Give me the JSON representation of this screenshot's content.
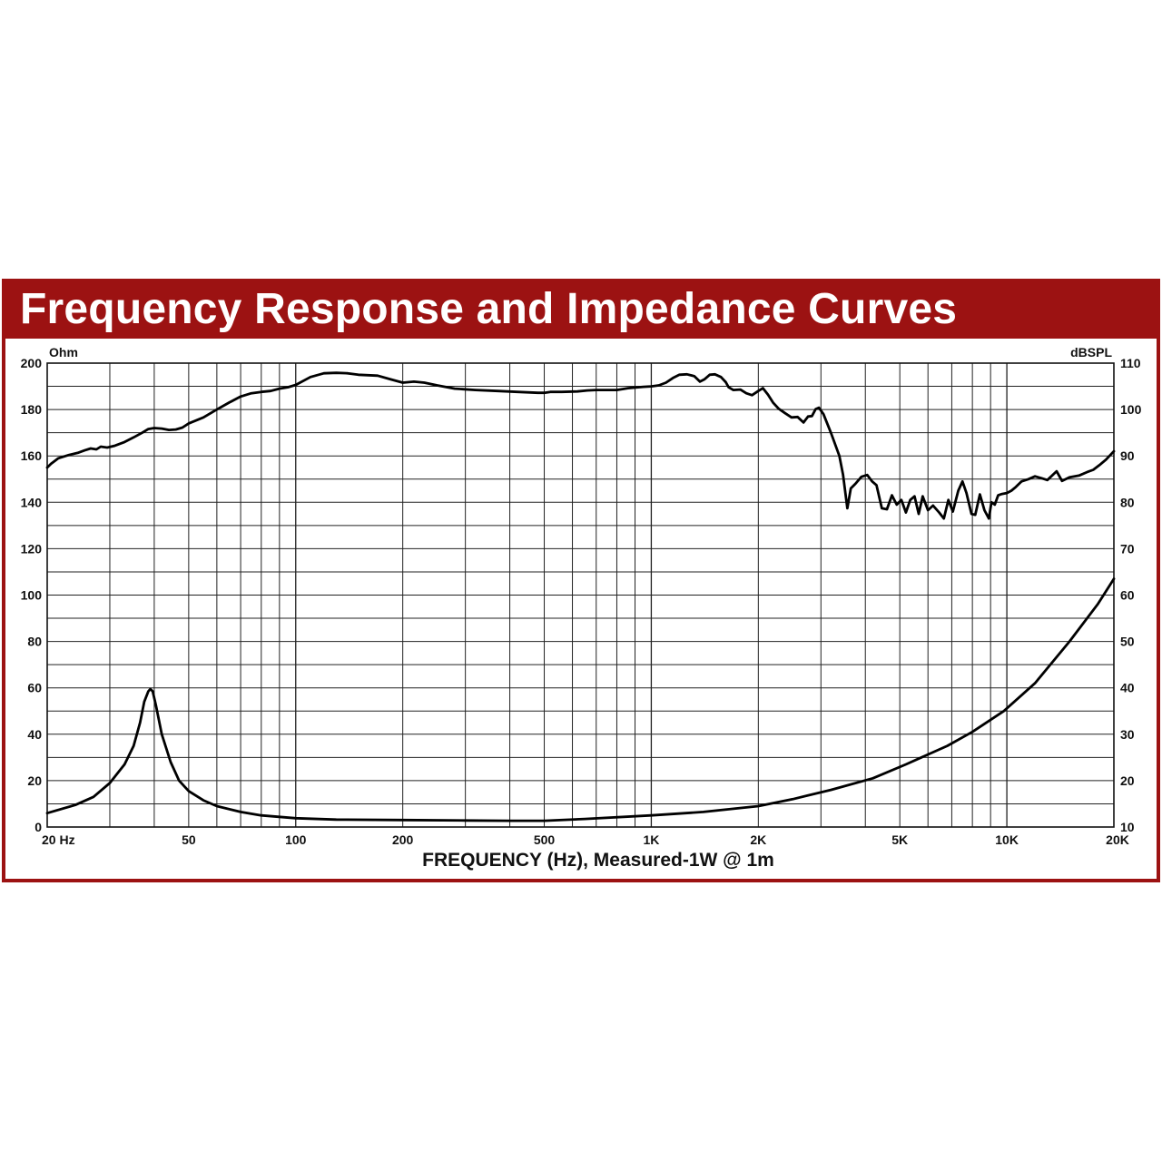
{
  "chart_data": {
    "type": "line",
    "title": "Frequency Response and Impedance Curves",
    "xlabel": "FREQUENCY (Hz), Measured-1W @ 1m",
    "x_scale": "log",
    "xlim": [
      20,
      20000
    ],
    "left_axis": {
      "unit_label": "Ohm",
      "lim": [
        0,
        200
      ],
      "ticks": [
        "0",
        "20",
        "40",
        "60",
        "80",
        "100",
        "120",
        "140",
        "160",
        "180",
        "200"
      ]
    },
    "right_axis": {
      "unit_label": "dBSPL",
      "lim": [
        10,
        110
      ],
      "ticks": [
        "10",
        "20",
        "30",
        "40",
        "50",
        "60",
        "70",
        "80",
        "90",
        "100",
        "110"
      ]
    },
    "x_tick_labels": [
      {
        "v": 20,
        "label": "20 Hz"
      },
      {
        "v": 50,
        "label": "50"
      },
      {
        "v": 100,
        "label": "100"
      },
      {
        "v": 200,
        "label": "200"
      },
      {
        "v": 500,
        "label": "500"
      },
      {
        "v": 1000,
        "label": "1K"
      },
      {
        "v": 2000,
        "label": "2K"
      },
      {
        "v": 5000,
        "label": "5K"
      },
      {
        "v": 10000,
        "label": "10K"
      },
      {
        "v": 20000,
        "label": "20K"
      }
    ],
    "grid": true,
    "series": [
      {
        "axis": "right",
        "units": "dBSPL",
        "points": [
          [
            20,
            87.5
          ],
          [
            20.5,
            88.3
          ],
          [
            21.5,
            89.5
          ],
          [
            23,
            90.2
          ],
          [
            24.5,
            90.7
          ],
          [
            25.5,
            91.2
          ],
          [
            26.5,
            91.6
          ],
          [
            27.5,
            91.4
          ],
          [
            28.3,
            92
          ],
          [
            29.5,
            91.8
          ],
          [
            31,
            92.2
          ],
          [
            33,
            93
          ],
          [
            35,
            94
          ],
          [
            37,
            95
          ],
          [
            38.5,
            95.8
          ],
          [
            40,
            96
          ],
          [
            42,
            95.9
          ],
          [
            44,
            95.6
          ],
          [
            46,
            95.7
          ],
          [
            48,
            96.1
          ],
          [
            50,
            97
          ],
          [
            55,
            98.3
          ],
          [
            60,
            100
          ],
          [
            65,
            101.5
          ],
          [
            70,
            102.8
          ],
          [
            75,
            103.5
          ],
          [
            80,
            103.8
          ],
          [
            85,
            104
          ],
          [
            90,
            104.5
          ],
          [
            95,
            104.8
          ],
          [
            100,
            105.3
          ],
          [
            110,
            107
          ],
          [
            120,
            107.8
          ],
          [
            130,
            107.9
          ],
          [
            140,
            107.8
          ],
          [
            150,
            107.5
          ],
          [
            170,
            107.3
          ],
          [
            185,
            106.5
          ],
          [
            200,
            105.8
          ],
          [
            215,
            106
          ],
          [
            230,
            105.8
          ],
          [
            250,
            105.2
          ],
          [
            280,
            104.5
          ],
          [
            320,
            104.2
          ],
          [
            370,
            104
          ],
          [
            420,
            103.8
          ],
          [
            480,
            103.6
          ],
          [
            500,
            103.6
          ],
          [
            520,
            103.8
          ],
          [
            560,
            103.8
          ],
          [
            620,
            103.9
          ],
          [
            660,
            104.1
          ],
          [
            700,
            104.2
          ],
          [
            770,
            104.2
          ],
          [
            800,
            104.2
          ],
          [
            860,
            104.6
          ],
          [
            950,
            104.9
          ],
          [
            1000,
            105
          ],
          [
            1050,
            105.2
          ],
          [
            1100,
            105.8
          ],
          [
            1150,
            106.8
          ],
          [
            1200,
            107.5
          ],
          [
            1260,
            107.6
          ],
          [
            1320,
            107.2
          ],
          [
            1370,
            106
          ],
          [
            1410,
            106.5
          ],
          [
            1460,
            107.5
          ],
          [
            1510,
            107.6
          ],
          [
            1570,
            107
          ],
          [
            1620,
            105.9
          ],
          [
            1650,
            104.8
          ],
          [
            1700,
            104.2
          ],
          [
            1780,
            104.3
          ],
          [
            1850,
            103.5
          ],
          [
            1920,
            103.1
          ],
          [
            2000,
            104
          ],
          [
            2060,
            104.6
          ],
          [
            2130,
            103.2
          ],
          [
            2200,
            101.5
          ],
          [
            2280,
            100.2
          ],
          [
            2380,
            99.2
          ],
          [
            2480,
            98.3
          ],
          [
            2580,
            98.4
          ],
          [
            2680,
            97.2
          ],
          [
            2760,
            98.5
          ],
          [
            2830,
            98.6
          ],
          [
            2900,
            100.1
          ],
          [
            2960,
            100.4
          ],
          [
            3050,
            99
          ],
          [
            3200,
            95
          ],
          [
            3380,
            90
          ],
          [
            3460,
            86
          ],
          [
            3560,
            78.7
          ],
          [
            3640,
            83
          ],
          [
            3750,
            84
          ],
          [
            3900,
            85.5
          ],
          [
            4050,
            85.9
          ],
          [
            4180,
            84.5
          ],
          [
            4300,
            83.7
          ],
          [
            4450,
            78.7
          ],
          [
            4600,
            78.5
          ],
          [
            4750,
            81.5
          ],
          [
            4900,
            79.5
          ],
          [
            5050,
            80.5
          ],
          [
            5200,
            77.8
          ],
          [
            5350,
            80.5
          ],
          [
            5500,
            81.3
          ],
          [
            5650,
            77.5
          ],
          [
            5800,
            81.3
          ],
          [
            6000,
            78.3
          ],
          [
            6200,
            79.3
          ],
          [
            6450,
            77.8
          ],
          [
            6650,
            76.5
          ],
          [
            6850,
            80.5
          ],
          [
            7050,
            78
          ],
          [
            7300,
            82.5
          ],
          [
            7500,
            84.5
          ],
          [
            7700,
            82
          ],
          [
            7950,
            77.5
          ],
          [
            8150,
            77.3
          ],
          [
            8400,
            81.7
          ],
          [
            8650,
            78.3
          ],
          [
            8900,
            76.5
          ],
          [
            9050,
            80
          ],
          [
            9250,
            79.5
          ],
          [
            9450,
            81.5
          ],
          [
            9700,
            81.8
          ],
          [
            10000,
            82
          ],
          [
            10300,
            82.5
          ],
          [
            10600,
            83.3
          ],
          [
            11000,
            84.5
          ],
          [
            11500,
            85
          ],
          [
            12000,
            85.6
          ],
          [
            12500,
            85.2
          ],
          [
            13000,
            84.8
          ],
          [
            13800,
            86.7
          ],
          [
            14300,
            84.6
          ],
          [
            15000,
            85.4
          ],
          [
            16000,
            85.8
          ],
          [
            16800,
            86.5
          ],
          [
            17500,
            87
          ],
          [
            18200,
            88
          ],
          [
            19000,
            89.2
          ],
          [
            20000,
            91
          ]
        ]
      },
      {
        "axis": "left",
        "units": "Ohm",
        "points": [
          [
            20,
            6
          ],
          [
            24,
            9.5
          ],
          [
            27,
            13
          ],
          [
            30,
            19
          ],
          [
            33,
            27
          ],
          [
            35,
            35
          ],
          [
            36.5,
            45
          ],
          [
            37.5,
            54
          ],
          [
            38.5,
            58.5
          ],
          [
            39,
            59.5
          ],
          [
            39.6,
            58.5
          ],
          [
            40.5,
            52
          ],
          [
            42,
            40
          ],
          [
            44.5,
            28
          ],
          [
            47,
            20
          ],
          [
            50,
            15.5
          ],
          [
            55,
            11.5
          ],
          [
            60,
            9
          ],
          [
            70,
            6.5
          ],
          [
            80,
            5
          ],
          [
            100,
            3.8
          ],
          [
            130,
            3.2
          ],
          [
            200,
            3
          ],
          [
            300,
            2.8
          ],
          [
            400,
            2.7
          ],
          [
            500,
            2.7
          ],
          [
            650,
            3.5
          ],
          [
            1000,
            5
          ],
          [
            1400,
            6.5
          ],
          [
            2000,
            9
          ],
          [
            2500,
            12
          ],
          [
            3200,
            16
          ],
          [
            4200,
            21
          ],
          [
            5200,
            27
          ],
          [
            6800,
            35
          ],
          [
            8000,
            41
          ],
          [
            9800,
            50
          ],
          [
            12000,
            62
          ],
          [
            15000,
            80
          ],
          [
            18000,
            96
          ],
          [
            20000,
            107
          ]
        ]
      }
    ]
  }
}
